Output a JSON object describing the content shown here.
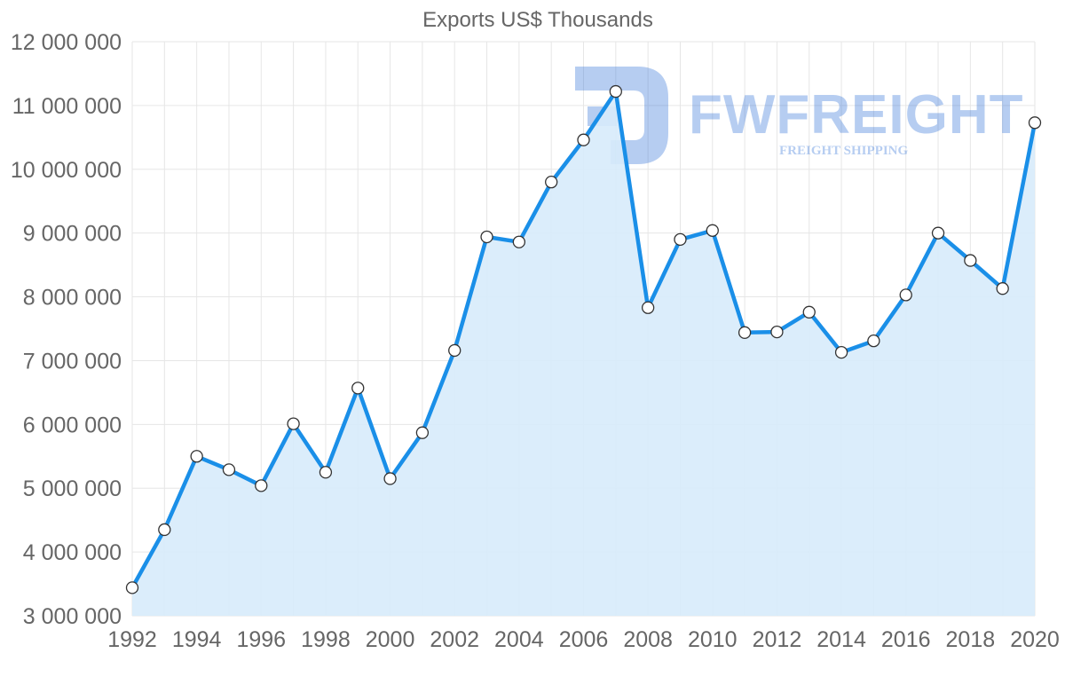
{
  "watermark": {
    "text": "FWFREIGHT",
    "subtext": "FREIGHT SHIPPING",
    "color": "#2f6fd6"
  },
  "chart_data": {
    "type": "area",
    "title": "Exports US$ Thousands",
    "xlabel": "",
    "ylabel": "",
    "x": [
      1992,
      1993,
      1994,
      1995,
      1996,
      1997,
      1998,
      1999,
      2000,
      2001,
      2002,
      2003,
      2004,
      2005,
      2006,
      2007,
      2008,
      2009,
      2010,
      2011,
      2012,
      2013,
      2014,
      2015,
      2016,
      2017,
      2018,
      2019,
      2020
    ],
    "values": [
      3440000,
      4350000,
      5500000,
      5290000,
      5040000,
      6010000,
      5250000,
      6570000,
      5150000,
      5870000,
      7160000,
      8940000,
      8860000,
      9800000,
      10460000,
      11220000,
      7830000,
      8900000,
      9040000,
      7440000,
      7450000,
      7760000,
      7130000,
      7310000,
      8030000,
      9000000,
      8570000,
      8130000,
      10730000
    ],
    "xlim": [
      1992,
      2020
    ],
    "ylim": [
      3000000,
      12000000
    ],
    "xticks": [
      1992,
      1994,
      1996,
      1998,
      2000,
      2002,
      2004,
      2006,
      2008,
      2010,
      2012,
      2014,
      2016,
      2018,
      2020
    ],
    "xtick_labels": [
      "1992",
      "1994",
      "1996",
      "1998",
      "2000",
      "2002",
      "2004",
      "2006",
      "2008",
      "2010",
      "2012",
      "2014",
      "2016",
      "2018",
      "2020"
    ],
    "yticks": [
      3000000,
      4000000,
      5000000,
      6000000,
      7000000,
      8000000,
      9000000,
      10000000,
      11000000,
      12000000
    ],
    "ytick_labels": [
      "3 000 000",
      "4 000 000",
      "5 000 000",
      "6 000 000",
      "7 000 000",
      "8 000 000",
      "9 000 000",
      "10 000 000",
      "11 000 000",
      "12 000 000"
    ],
    "grid": true,
    "line_color": "#1a8fe8",
    "fill_color": "#d7ebfb",
    "point_fill": "#ffffff",
    "point_stroke": "#333333"
  }
}
